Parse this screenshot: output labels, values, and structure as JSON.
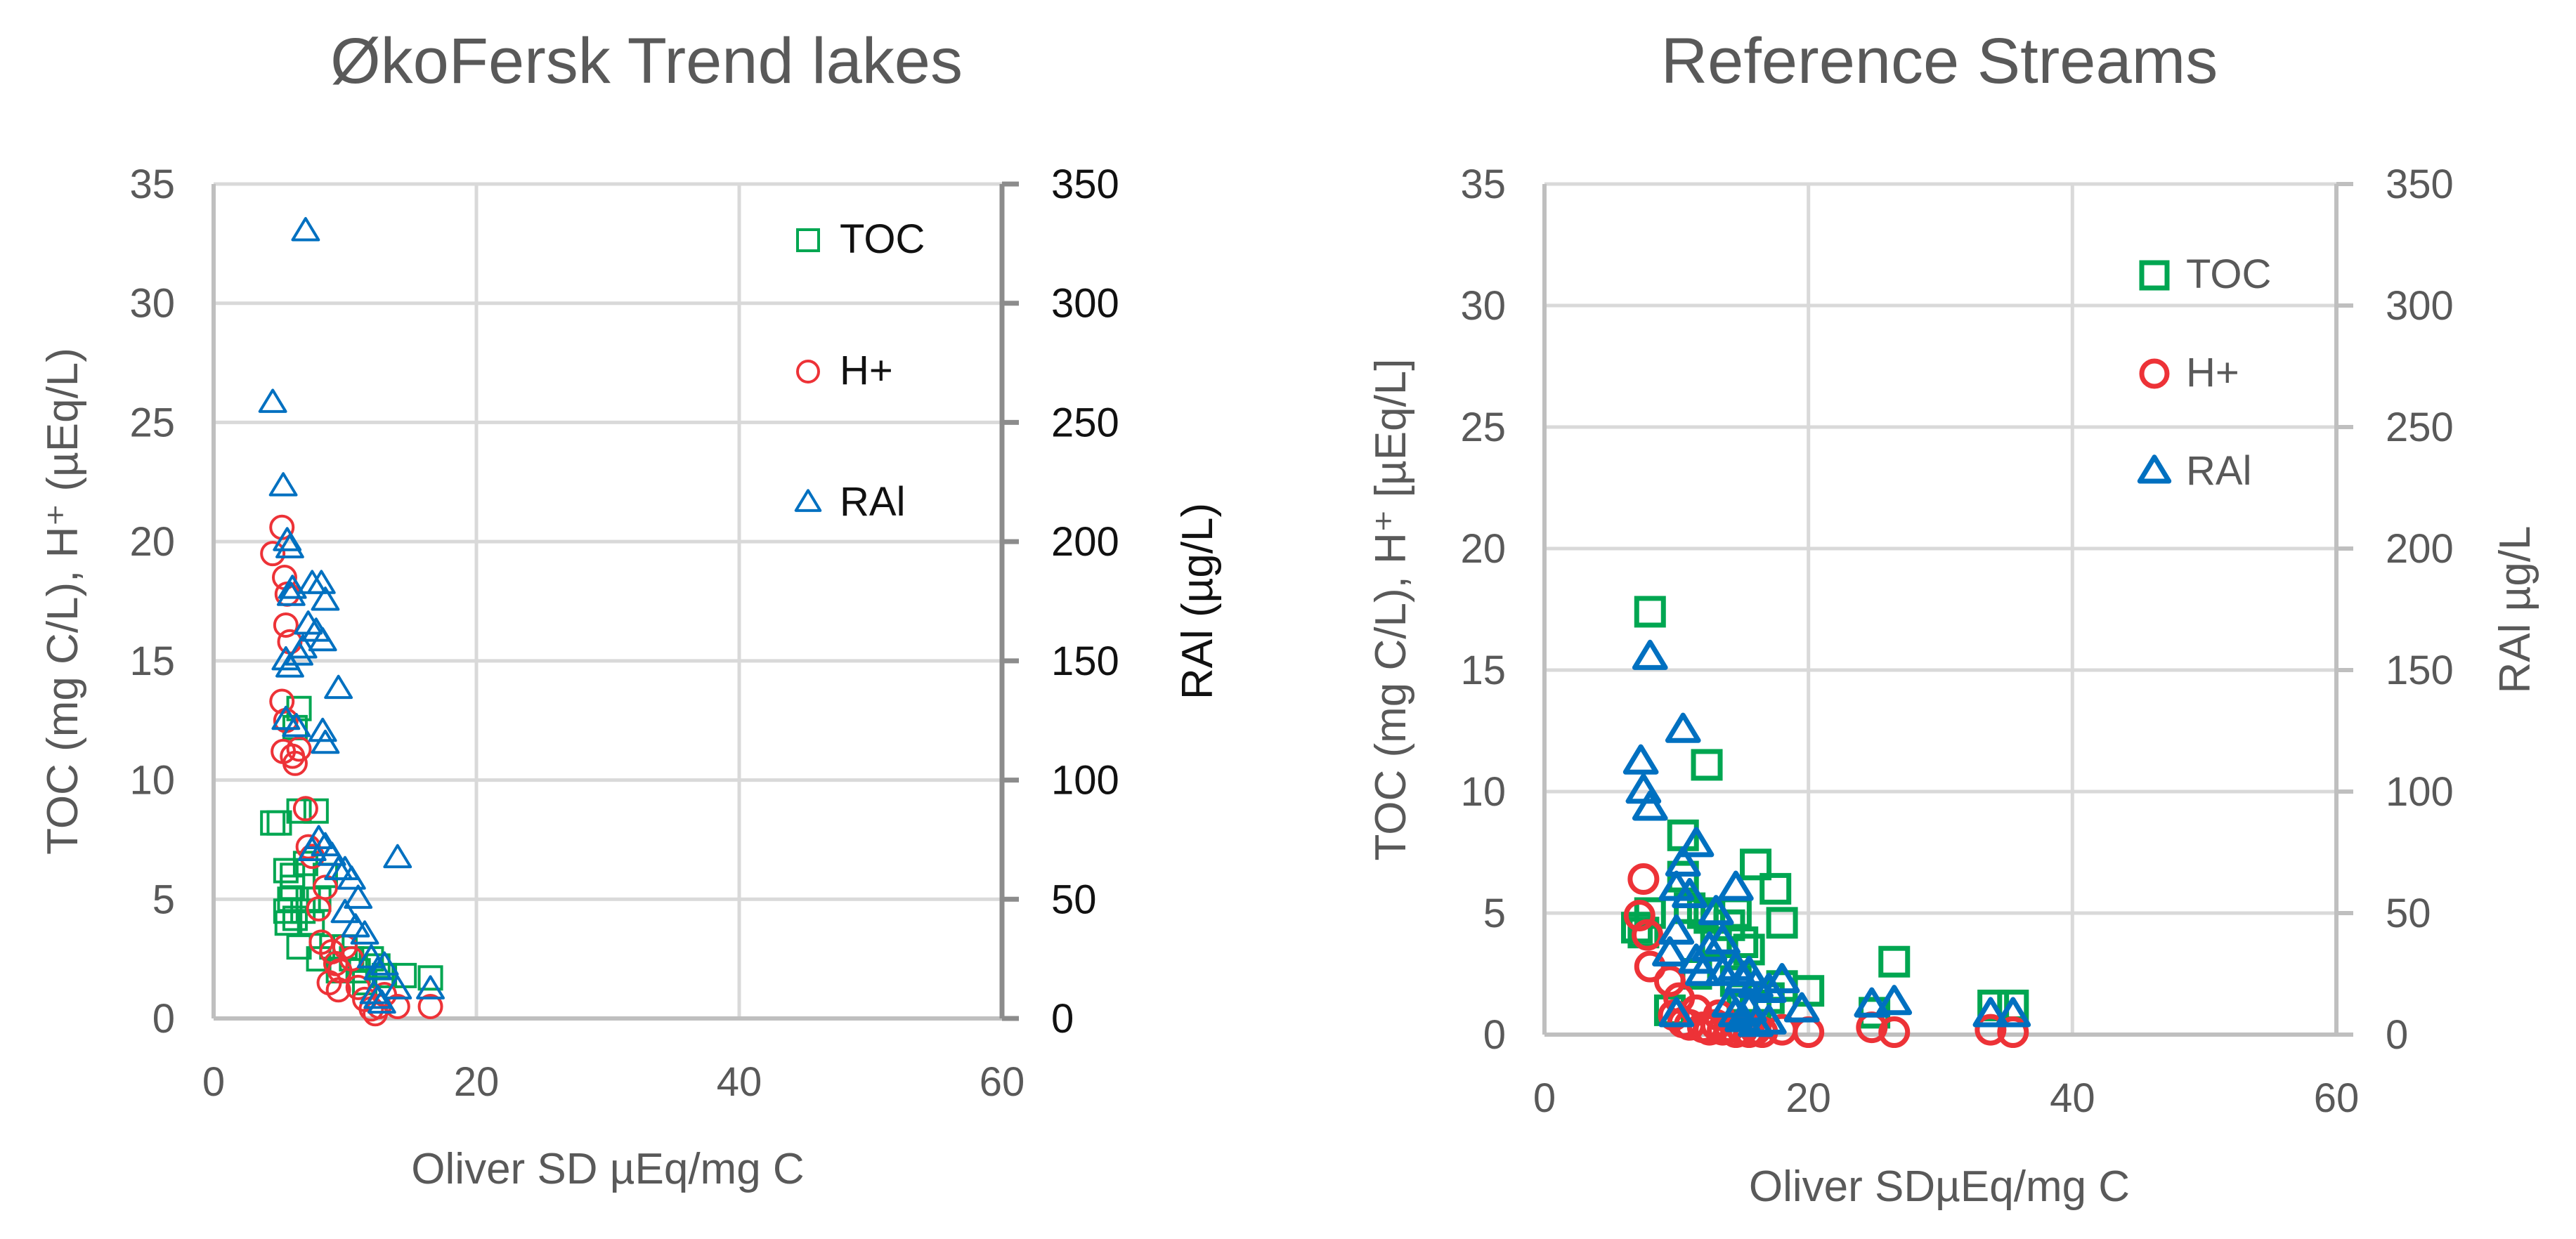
{
  "colors": {
    "toc": "#00a651",
    "h_plus": "#ed3237",
    "ral": "#0070c0",
    "text": "#595959",
    "text_dark": "#111111",
    "grid": "#d9d9d9"
  },
  "chart_data": [
    {
      "type": "scatter",
      "title": "ØkoFersk Trend lakes",
      "xlabel": "Oliver SD µEq/mg C",
      "ylabel": "TOC (mg C/L), H⁺ (µEq/L)",
      "y2label": "RAl (µg/L)",
      "xlim": [
        0,
        60
      ],
      "ylim": [
        0,
        35
      ],
      "y2lim": [
        0,
        350
      ],
      "xticks": [
        "0",
        "20",
        "40",
        "60"
      ],
      "yticks": [
        "0",
        "5",
        "10",
        "15",
        "20",
        "25",
        "30",
        "35"
      ],
      "y2ticks": [
        "0",
        "50",
        "100",
        "150",
        "200",
        "250",
        "300",
        "350"
      ],
      "grid": true,
      "legend_position": "upper right (inside)",
      "legend": [
        "TOC",
        "H+",
        "RAl"
      ],
      "series": [
        {
          "name": "TOC",
          "axis": "left",
          "marker": "square",
          "points": [
            [
              4.5,
              8.2
            ],
            [
              5.0,
              8.2
            ],
            [
              5.5,
              6.2
            ],
            [
              5.5,
              4.5
            ],
            [
              5.6,
              4.0
            ],
            [
              6.0,
              5.5
            ],
            [
              6.2,
              4.2
            ],
            [
              6.5,
              13.0
            ],
            [
              6.2,
              12.2
            ],
            [
              6.5,
              3.0
            ],
            [
              6.5,
              8.7
            ],
            [
              7.0,
              6.5
            ],
            [
              7.2,
              5.0
            ],
            [
              7.5,
              4.0
            ],
            [
              7.8,
              8.7
            ],
            [
              8.0,
              2.5
            ],
            [
              8.0,
              5.0
            ],
            [
              8.5,
              6.0
            ],
            [
              9.0,
              3.0
            ],
            [
              9.5,
              2.0
            ],
            [
              10.0,
              3.0
            ],
            [
              10.5,
              2.5
            ],
            [
              11.0,
              2.0
            ],
            [
              11.5,
              1.5
            ],
            [
              12.0,
              2.5
            ],
            [
              12.5,
              2.2
            ],
            [
              13.0,
              1.8
            ],
            [
              14.5,
              1.8
            ],
            [
              16.5,
              1.7
            ],
            [
              6.0,
              6.0
            ],
            [
              5.8,
              5.0
            ],
            [
              6.8,
              4.5
            ]
          ]
        },
        {
          "name": "H+",
          "axis": "left",
          "marker": "circle",
          "points": [
            [
              4.5,
              19.5
            ],
            [
              5.2,
              20.6
            ],
            [
              5.4,
              18.5
            ],
            [
              5.6,
              17.8
            ],
            [
              5.5,
              16.5
            ],
            [
              5.8,
              15.8
            ],
            [
              5.2,
              13.3
            ],
            [
              5.5,
              12.5
            ],
            [
              5.3,
              11.2
            ],
            [
              6.0,
              11.0
            ],
            [
              6.2,
              10.7
            ],
            [
              6.5,
              11.3
            ],
            [
              7.0,
              8.8
            ],
            [
              7.2,
              7.2
            ],
            [
              7.5,
              6.8
            ],
            [
              8.0,
              4.6
            ],
            [
              8.5,
              5.5
            ],
            [
              8.2,
              3.2
            ],
            [
              9.0,
              2.8
            ],
            [
              9.3,
              2.3
            ],
            [
              9.6,
              2.0
            ],
            [
              10.0,
              3.0
            ],
            [
              10.5,
              2.5
            ],
            [
              9.5,
              1.2
            ],
            [
              11.0,
              1.3
            ],
            [
              11.5,
              0.8
            ],
            [
              12.0,
              0.4
            ],
            [
              12.3,
              0.2
            ],
            [
              12.6,
              0.5
            ],
            [
              13.0,
              1.0
            ],
            [
              14.0,
              0.5
            ],
            [
              16.5,
              0.5
            ],
            [
              8.8,
              1.5
            ]
          ]
        },
        {
          "name": "RAl",
          "axis": "right",
          "marker": "triangle",
          "points": [
            [
              7.0,
              330
            ],
            [
              4.5,
              258
            ],
            [
              5.3,
              223
            ],
            [
              5.6,
              200
            ],
            [
              5.8,
              197
            ],
            [
              6.0,
              180
            ],
            [
              7.5,
              182
            ],
            [
              8.2,
              182
            ],
            [
              8.5,
              175
            ],
            [
              5.9,
              177
            ],
            [
              7.2,
              165
            ],
            [
              7.8,
              162
            ],
            [
              6.8,
              155
            ],
            [
              8.3,
              158
            ],
            [
              5.5,
              150
            ],
            [
              5.8,
              147
            ],
            [
              6.5,
              152
            ],
            [
              9.5,
              138
            ],
            [
              8.3,
              120
            ],
            [
              8.5,
              115
            ],
            [
              5.5,
              125
            ],
            [
              6.3,
              122
            ],
            [
              14.0,
              67
            ],
            [
              7.5,
              70
            ],
            [
              8.0,
              75
            ],
            [
              8.5,
              72
            ],
            [
              9.0,
              68
            ],
            [
              9.5,
              62
            ],
            [
              10.0,
              62
            ],
            [
              10.5,
              58
            ],
            [
              11.0,
              50
            ],
            [
              10.0,
              44
            ],
            [
              10.8,
              38
            ],
            [
              11.5,
              35
            ],
            [
              12.0,
              25
            ],
            [
              12.5,
              20
            ],
            [
              13.0,
              22
            ],
            [
              12.2,
              10
            ],
            [
              12.5,
              8
            ],
            [
              12.8,
              6
            ],
            [
              14.0,
              12
            ],
            [
              16.5,
              12
            ]
          ]
        }
      ]
    },
    {
      "type": "scatter",
      "title": "Reference Streams",
      "xlabel": "Oliver SDµEq/mg C",
      "ylabel": "TOC (mg C/L), H⁺ [µEq/L]",
      "y2label": "RAl µg/L",
      "xlim": [
        0,
        60
      ],
      "ylim": [
        0,
        35
      ],
      "y2lim": [
        0,
        350
      ],
      "xticks": [
        "0",
        "20",
        "40",
        "60"
      ],
      "yticks": [
        "0",
        "5",
        "10",
        "15",
        "20",
        "25",
        "30",
        "35"
      ],
      "y2ticks": [
        "0",
        "50",
        "100",
        "150",
        "200",
        "250",
        "300",
        "350"
      ],
      "grid": true,
      "legend_position": "upper right (inside)",
      "legend": [
        "TOC",
        "H+",
        "RAl"
      ],
      "series": [
        {
          "name": "TOC",
          "axis": "left",
          "marker": "square",
          "points": [
            [
              8.0,
              17.4
            ],
            [
              12.3,
              11.1
            ],
            [
              10.5,
              8.2
            ],
            [
              7.0,
              4.4
            ],
            [
              7.5,
              4.2
            ],
            [
              8.0,
              5.0
            ],
            [
              10.5,
              6.5
            ],
            [
              11.0,
              5.2
            ],
            [
              12.0,
              5.0
            ],
            [
              12.5,
              4.8
            ],
            [
              13.0,
              3.8
            ],
            [
              14.0,
              4.5
            ],
            [
              14.5,
              5.0
            ],
            [
              15.0,
              3.8
            ],
            [
              15.5,
              3.5
            ],
            [
              16.0,
              7.0
            ],
            [
              17.5,
              6.0
            ],
            [
              18.0,
              4.6
            ],
            [
              14.5,
              2.2
            ],
            [
              15.0,
              1.5
            ],
            [
              16.0,
              1.2
            ],
            [
              17.0,
              1.5
            ],
            [
              18.0,
              2.0
            ],
            [
              20.0,
              1.8
            ],
            [
              25.0,
              0.9
            ],
            [
              26.5,
              3.0
            ],
            [
              34.0,
              1.2
            ],
            [
              35.5,
              1.2
            ],
            [
              9.5,
              1.0
            ],
            [
              11.5,
              2.5
            ]
          ]
        },
        {
          "name": "H+",
          "axis": "left",
          "marker": "circle",
          "points": [
            [
              7.5,
              6.4
            ],
            [
              7.2,
              4.9
            ],
            [
              7.8,
              4.1
            ],
            [
              8.0,
              2.8
            ],
            [
              9.5,
              2.2
            ],
            [
              9.8,
              0.8
            ],
            [
              10.5,
              0.5
            ],
            [
              11.0,
              0.4
            ],
            [
              12.0,
              0.3
            ],
            [
              12.5,
              0.2
            ],
            [
              13.0,
              0.4
            ],
            [
              13.5,
              0.2
            ],
            [
              14.0,
              0.3
            ],
            [
              14.5,
              0.1
            ],
            [
              15.0,
              0.2
            ],
            [
              15.5,
              0.1
            ],
            [
              16.0,
              0.2
            ],
            [
              16.5,
              0.1
            ],
            [
              18.0,
              0.2
            ],
            [
              20.0,
              0.1
            ],
            [
              24.8,
              0.3
            ],
            [
              26.5,
              0.1
            ],
            [
              33.8,
              0.2
            ],
            [
              35.5,
              0.1
            ],
            [
              10.2,
              1.5
            ],
            [
              11.5,
              1.0
            ],
            [
              13.2,
              0.8
            ]
          ]
        },
        {
          "name": "RAl",
          "axis": "right",
          "marker": "triangle",
          "points": [
            [
              8.0,
              155
            ],
            [
              10.5,
              125
            ],
            [
              7.3,
              112
            ],
            [
              7.5,
              100
            ],
            [
              8.0,
              93
            ],
            [
              11.5,
              78
            ],
            [
              10.5,
              70
            ],
            [
              10.0,
              60
            ],
            [
              11.0,
              57
            ],
            [
              14.5,
              60
            ],
            [
              13.0,
              50
            ],
            [
              10.0,
              42
            ],
            [
              9.5,
              33
            ],
            [
              11.5,
              30
            ],
            [
              12.5,
              35
            ],
            [
              13.5,
              38
            ],
            [
              12.0,
              25
            ],
            [
              13.5,
              25
            ],
            [
              14.5,
              27
            ],
            [
              15.0,
              22
            ],
            [
              15.5,
              25
            ],
            [
              16.0,
              20
            ],
            [
              17.0,
              18
            ],
            [
              18.0,
              22
            ],
            [
              14.0,
              12
            ],
            [
              14.5,
              8
            ],
            [
              15.0,
              6
            ],
            [
              15.5,
              10
            ],
            [
              16.0,
              4
            ],
            [
              17.0,
              5
            ],
            [
              19.5,
              10
            ],
            [
              10.0,
              8
            ],
            [
              24.8,
              12
            ],
            [
              26.5,
              13
            ],
            [
              33.8,
              8
            ],
            [
              35.5,
              8
            ]
          ]
        }
      ]
    }
  ]
}
